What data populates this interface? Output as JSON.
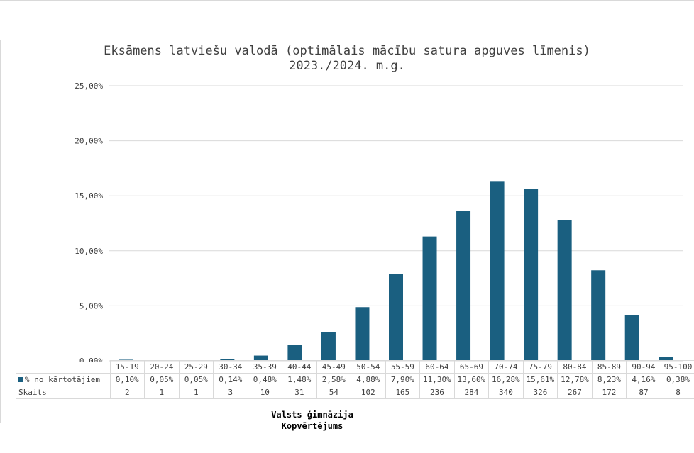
{
  "chart_data": {
    "type": "bar",
    "title": [
      "Eksāmens latviešu valodā (optimālais mācību satura apguves līmenis)",
      "2023./2024. m.g."
    ],
    "categories": [
      "15-19",
      "20-24",
      "25-29",
      "30-34",
      "35-39",
      "40-44",
      "45-49",
      "50-54",
      "55-59",
      "60-64",
      "65-69",
      "70-74",
      "75-79",
      "80-84",
      "85-89",
      "90-94",
      "95-100"
    ],
    "series": [
      {
        "name": "% no kārtotājiem",
        "values": [
          0.1,
          0.05,
          0.05,
          0.14,
          0.48,
          1.48,
          2.58,
          4.88,
          7.9,
          11.3,
          13.6,
          16.28,
          15.61,
          12.78,
          8.23,
          4.16,
          0.38
        ],
        "labels": [
          "0,10%",
          "0,05%",
          "0,05%",
          "0,14%",
          "0,48%",
          "1,48%",
          "2,58%",
          "4,88%",
          "7,90%",
          "11,30%",
          "13,60%",
          "16,28%",
          "15,61%",
          "12,78%",
          "8,23%",
          "4,16%",
          "0,38%"
        ]
      }
    ],
    "table_rows": [
      {
        "name": "Skaits",
        "values": [
          "2",
          "1",
          "1",
          "3",
          "10",
          "31",
          "54",
          "102",
          "165",
          "236",
          "284",
          "340",
          "326",
          "267",
          "172",
          "87",
          "8"
        ]
      }
    ],
    "ylim": [
      0,
      25
    ],
    "yticks": [
      "0,00%",
      "5,00%",
      "10,00%",
      "15,00%",
      "20,00%",
      "25,00%"
    ],
    "grid": true,
    "legend": "data-table",
    "bar_color": "#1a5f80",
    "footer": [
      "Valsts ģimnāzija",
      "Kopvērtējums"
    ]
  }
}
